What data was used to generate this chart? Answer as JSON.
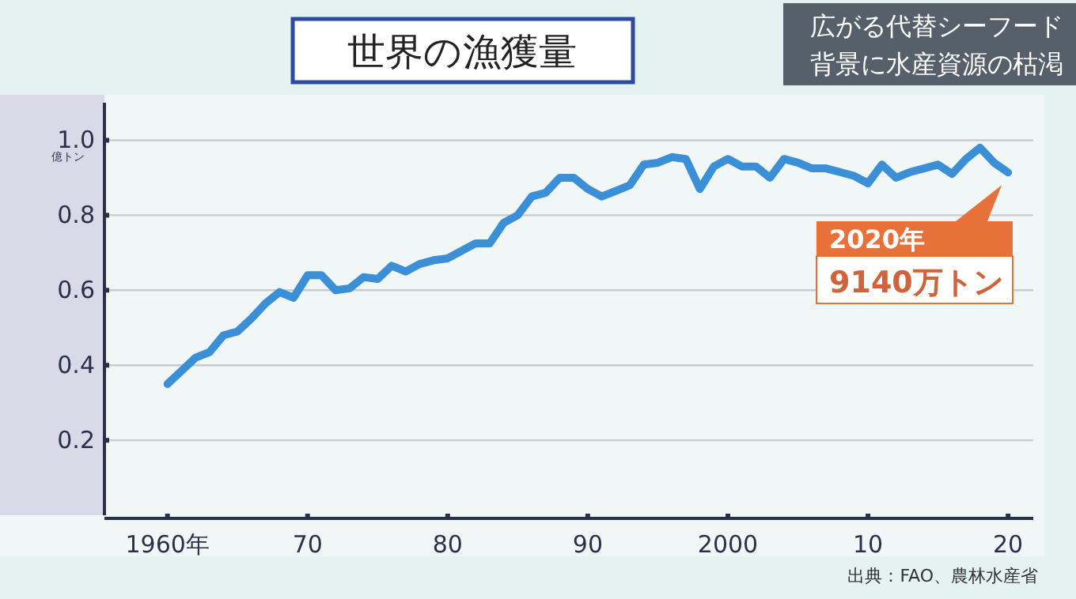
{
  "chart_data": {
    "type": "line",
    "title": "世界の漁獲量",
    "subtitle": "広がる代替シーフード背景に水産資源の枯渇",
    "ylabel": "億トン",
    "x": [
      1960,
      1961,
      1962,
      1963,
      1964,
      1965,
      1966,
      1967,
      1968,
      1969,
      1970,
      1971,
      1972,
      1973,
      1974,
      1975,
      1976,
      1977,
      1978,
      1979,
      1980,
      1981,
      1982,
      1983,
      1984,
      1985,
      1986,
      1987,
      1988,
      1989,
      1990,
      1991,
      1992,
      1993,
      1994,
      1995,
      1996,
      1997,
      1998,
      1999,
      2000,
      2001,
      2002,
      2003,
      2004,
      2005,
      2006,
      2007,
      2008,
      2009,
      2010,
      2011,
      2012,
      2013,
      2014,
      2015,
      2016,
      2017,
      2018,
      2019,
      2020
    ],
    "series": [
      {
        "color": "#3a8fd6",
        "values": [
          0.35,
          0.385,
          0.42,
          0.435,
          0.48,
          0.49,
          0.525,
          0.565,
          0.595,
          0.58,
          0.64,
          0.64,
          0.6,
          0.605,
          0.635,
          0.63,
          0.665,
          0.65,
          0.67,
          0.68,
          0.685,
          0.705,
          0.725,
          0.725,
          0.78,
          0.8,
          0.85,
          0.86,
          0.9,
          0.9,
          0.87,
          0.85,
          0.865,
          0.88,
          0.935,
          0.94,
          0.955,
          0.95,
          0.87,
          0.93,
          0.95,
          0.93,
          0.93,
          0.9,
          0.95,
          0.94,
          0.925,
          0.925,
          0.915,
          0.905,
          0.885,
          0.935,
          0.9,
          0.915,
          0.925,
          0.935,
          0.91,
          0.95,
          0.98,
          0.94,
          0.914
        ]
      }
    ],
    "xlim": [
      1955.5,
      2021.8
    ],
    "ylim": [
      0,
      1.1
    ],
    "xticks": [
      {
        "value": 1960,
        "label": "1960年"
      },
      {
        "value": 1970,
        "label": "70"
      },
      {
        "value": 1980,
        "label": "80"
      },
      {
        "value": 1990,
        "label": "90"
      },
      2000,
      {
        "value": 2010,
        "label": "10"
      },
      {
        "value": 2020,
        "label": "20"
      }
    ],
    "yticks": [
      {
        "value": 0.2,
        "label": "0.2"
      },
      {
        "value": 0.4,
        "label": "0.4"
      },
      {
        "value": 0.6,
        "label": "0.6"
      },
      {
        "value": 0.8,
        "label": "0.8"
      },
      {
        "value": 1.0,
        "label": "1.0"
      }
    ],
    "grid": "y",
    "marker": "none",
    "line_style": "solid",
    "annotations": [
      "2020年",
      "9140万トン",
      "出典：FAO、農林水産省"
    ]
  }
}
